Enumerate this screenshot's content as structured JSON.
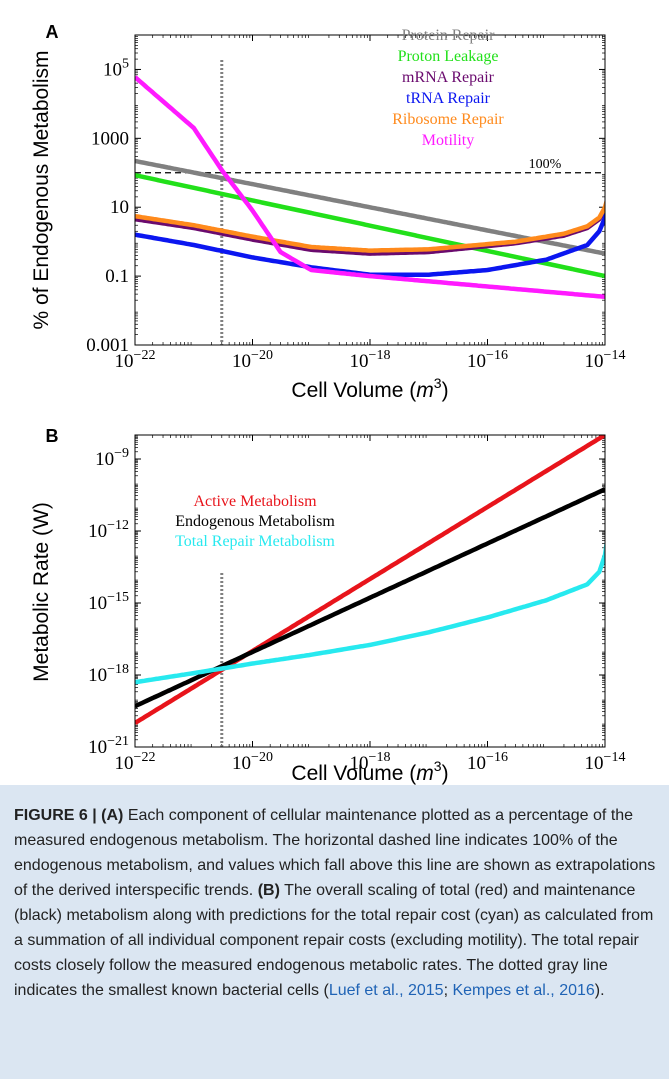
{
  "chart_data": [
    {
      "panel_label": "A",
      "type": "line",
      "xscale": "log",
      "yscale": "log",
      "xlabel": "Cell Volume",
      "xlabel_unit": "m",
      "xlabel_unit_exp": "3",
      "ylabel": "% of Endogenous Metabolism",
      "xlim": [
        1e-22,
        1e-14
      ],
      "ylim": [
        0.001,
        1000000
      ],
      "x_ticks": [
        {
          "value": 1e-22,
          "base": "10",
          "exp": "−22"
        },
        {
          "value": 1e-20,
          "base": "10",
          "exp": "−20"
        },
        {
          "value": 1e-18,
          "base": "10",
          "exp": "−18"
        },
        {
          "value": 1e-16,
          "base": "10",
          "exp": "−16"
        },
        {
          "value": 1e-14,
          "base": "10",
          "exp": "−14"
        }
      ],
      "y_ticks": [
        {
          "value": 0.001,
          "base": "0.001",
          "exp": ""
        },
        {
          "value": 0.1,
          "base": "0.1",
          "exp": ""
        },
        {
          "value": 10,
          "base": "10",
          "exp": ""
        },
        {
          "value": 1000,
          "base": "1000",
          "exp": ""
        },
        {
          "value": 100000,
          "base": "10",
          "exp": "5"
        }
      ],
      "reference_line": {
        "y": 100,
        "label": "100%",
        "style": "dashed"
      },
      "vertical_marker": {
        "x": 3e-21,
        "style": "dotted",
        "color": "#808080"
      },
      "series": [
        {
          "name": "Protein Repair",
          "color": "#808080",
          "x": [
            1e-22,
            1e-14
          ],
          "y": [
            220,
            0.45
          ]
        },
        {
          "name": "Proton Leakage",
          "color": "#22e01a",
          "x": [
            1e-22,
            1e-14
          ],
          "y": [
            85,
            0.1
          ]
        },
        {
          "name": "mRNA Repair",
          "color": "#6a0a6e",
          "x": [
            1e-22,
            1e-21,
            1e-20,
            1e-19,
            1e-18,
            1e-17,
            3e-16,
            2e-15,
            5e-15,
            8e-15,
            1e-14,
            1.1e-14,
            1.15e-14,
            1.18e-14,
            1.2e-14
          ],
          "y": [
            4.5,
            2.5,
            1.15,
            0.58,
            0.45,
            0.5,
            0.9,
            1.5,
            2.5,
            4.5,
            9,
            16,
            30,
            70,
            200
          ]
        },
        {
          "name": "tRNA Repair",
          "color": "#0b16f0",
          "x": [
            1e-22,
            1e-21,
            1e-20,
            1e-19,
            1e-18,
            1e-17,
            1e-16,
            1e-15,
            5e-15,
            8e-15,
            1e-14,
            1.1e-14,
            1.15e-14,
            1.18e-14,
            1.2e-14
          ],
          "y": [
            1.6,
            0.8,
            0.35,
            0.18,
            0.11,
            0.11,
            0.15,
            0.3,
            0.8,
            2,
            5,
            10,
            25,
            80,
            250
          ]
        },
        {
          "name": "Ribosome Repair",
          "color": "#ff8a1c",
          "x": [
            1e-22,
            1e-21,
            1e-20,
            1e-19,
            1e-18,
            1e-17,
            3e-16,
            2e-15,
            5e-15,
            8e-15,
            1e-14,
            1.1e-14,
            1.15e-14,
            1.18e-14,
            1.2e-14
          ],
          "y": [
            5.5,
            3,
            1.4,
            0.7,
            0.55,
            0.6,
            1,
            1.7,
            2.8,
            5,
            10,
            18,
            35,
            80,
            330
          ]
        },
        {
          "name": "Motility",
          "color": "#ff1aff",
          "x": [
            1e-22,
            1e-21,
            3e-21,
            1e-20,
            3e-20,
            1e-19,
            1e-18,
            1e-14
          ],
          "y": [
            60000,
            2000,
            120,
            8,
            0.5,
            0.15,
            0.1,
            0.025
          ]
        }
      ]
    },
    {
      "panel_label": "B",
      "type": "line",
      "xscale": "log",
      "yscale": "log",
      "xlabel": "Cell Volume",
      "xlabel_unit": "m",
      "xlabel_unit_exp": "3",
      "ylabel": "Metabolic Rate (W)",
      "xlim": [
        1e-22,
        1e-14
      ],
      "ylim": [
        1e-21,
        1e-08
      ],
      "x_ticks": [
        {
          "value": 1e-22,
          "base": "10",
          "exp": "−22"
        },
        {
          "value": 1e-20,
          "base": "10",
          "exp": "−20"
        },
        {
          "value": 1e-18,
          "base": "10",
          "exp": "−18"
        },
        {
          "value": 1e-16,
          "base": "10",
          "exp": "−16"
        },
        {
          "value": 1e-14,
          "base": "10",
          "exp": "−14"
        }
      ],
      "y_ticks": [
        {
          "value": 1e-21,
          "base": "10",
          "exp": "−21"
        },
        {
          "value": 1e-18,
          "base": "10",
          "exp": "−18"
        },
        {
          "value": 1e-15,
          "base": "10",
          "exp": "−15"
        },
        {
          "value": 1e-12,
          "base": "10",
          "exp": "−12"
        },
        {
          "value": 1e-09,
          "base": "10",
          "exp": "−9"
        }
      ],
      "vertical_marker": {
        "x": 3e-21,
        "style": "dotted",
        "color": "#808080"
      },
      "series": [
        {
          "name": "Active Metabolism",
          "color": "#e8141b",
          "x": [
            1e-22,
            1e-14
          ],
          "y": [
            1e-20,
            1e-08
          ]
        },
        {
          "name": "Endogenous Metabolism",
          "color": "#000000",
          "x": [
            1e-22,
            1e-14
          ],
          "y": [
            5e-20,
            5.5e-11
          ]
        },
        {
          "name": "Total Repair Metabolism",
          "color": "#27e9ef",
          "x": [
            1e-22,
            1e-21,
            1e-20,
            1e-19,
            1e-18,
            1e-17,
            1e-16,
            1e-15,
            5e-15,
            8e-15,
            1e-14,
            1.1e-14,
            1.15e-14,
            1.18e-14,
            1.2e-14
          ],
          "y": [
            5e-19,
            1.2e-18,
            3e-18,
            7e-18,
            1.8e-17,
            6e-17,
            2.5e-16,
            1.3e-15,
            6e-15,
            2e-14,
            1e-13,
            5e-13,
            3e-12,
            5e-11,
            2e-09
          ]
        }
      ]
    }
  ],
  "caption": {
    "figure_label": "FIGURE 6 |",
    "panel_a_label": "(A)",
    "panel_a_text": " Each component of cellular maintenance plotted as a percentage of the measured endogenous metabolism. The horizontal dashed line indicates 100% of the endogenous metabolism, and values which fall above this line are shown as extrapolations of the derived interspecific trends. ",
    "panel_b_label": "(B)",
    "panel_b_text": " The overall scaling of total (red) and maintenance (black) metabolism along with predictions for the total repair cost (cyan) as calculated from a summation of all individual component repair costs (excluding motility). The total repair costs closely follow the measured endogenous metabolic rates. The dotted gray line indicates the smallest known bacterial cells (",
    "cite_1": "Luef et al., 2015",
    "separator": "; ",
    "cite_2": "Kempes et al., 2016",
    "closing": ")."
  }
}
